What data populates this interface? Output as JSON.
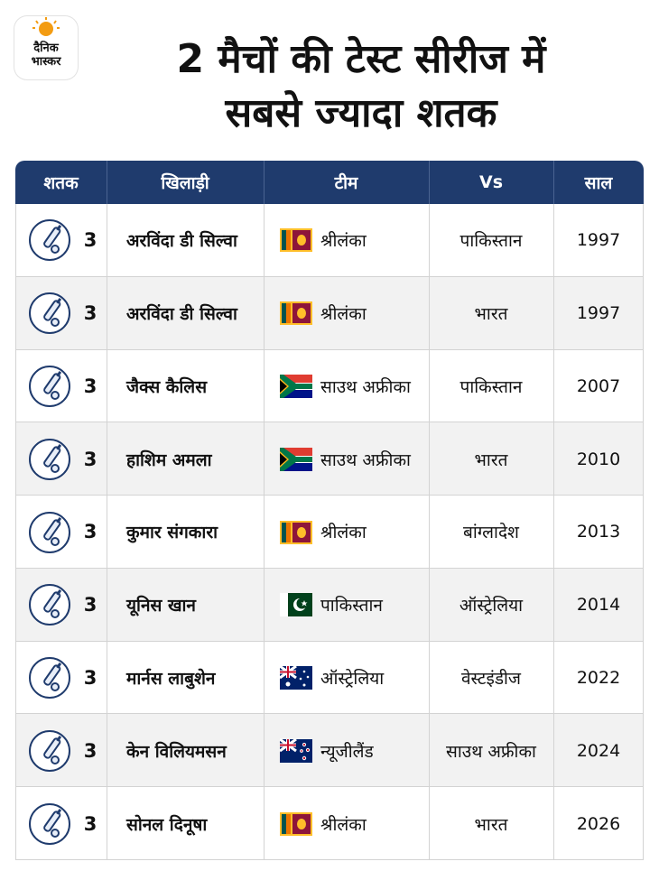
{
  "logo": {
    "line1": "दैनिक",
    "line2": "भास्कर"
  },
  "title": [
    "2 मैचों की टेस्ट सीरीज में",
    "सबसे ज्यादा शतक"
  ],
  "table": {
    "header": [
      "शतक",
      "खिलाड़ी",
      "टीम",
      "Vs",
      "साल"
    ],
    "rows": [
      [
        "3",
        "अरविंदा डी सिल्वा",
        "श्रीलंका",
        "पाकिस्तान",
        "1997"
      ],
      [
        "3",
        "अरविंदा डी सिल्वा",
        "श्रीलंका",
        "भारत",
        "1997"
      ],
      [
        "3",
        "जैक्स कैलिस",
        "साउथ अफ्रीका",
        "पाकिस्तान",
        "2007"
      ],
      [
        "3",
        "हाशिम अमला",
        "साउथ अफ्रीका",
        "भारत",
        "2010"
      ],
      [
        "3",
        "कुमार संगकारा",
        "श्रीलंका",
        "बांग्लादेश",
        "2013"
      ],
      [
        "3",
        "यूनिस खान",
        "पाकिस्तान",
        "ऑस्ट्रेलिया",
        "2014"
      ],
      [
        "3",
        "मार्नस लाबुशेन",
        "ऑस्ट्रेलिया",
        "वेस्टइंडीज",
        "2022"
      ],
      [
        "3",
        "केन विलियमसन",
        "न्यूजीलैंड",
        "साउथ अफ्रीका",
        "2024"
      ],
      [
        "3",
        "सोनल दिनूषा",
        "श्रीलंका",
        "भारत",
        "2026"
      ]
    ]
  }
}
